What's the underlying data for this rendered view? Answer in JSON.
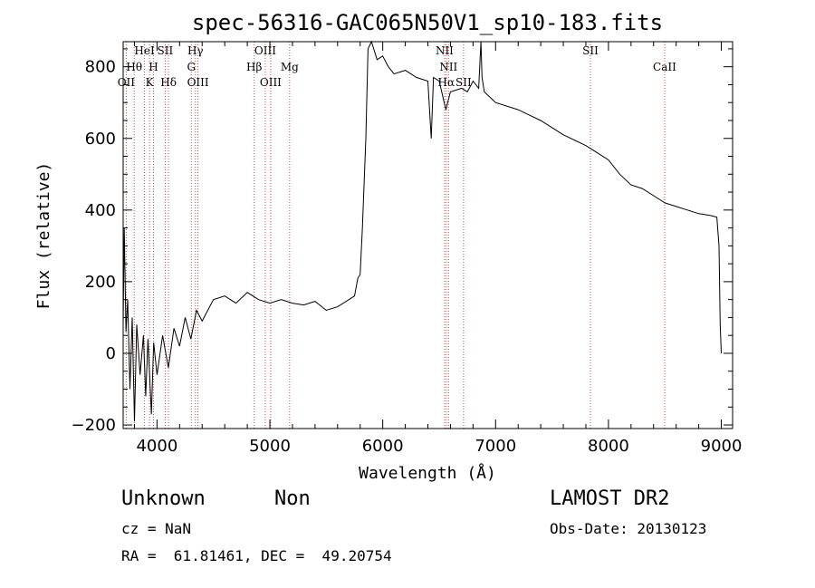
{
  "chart_data": {
    "type": "line",
    "title": "spec-56316-GAC065N50V1_sp10-183.fits",
    "xlabel": "Wavelength (Å)",
    "ylabel": "Flux (relative)",
    "xlim": [
      3700,
      9100
    ],
    "ylim": [
      -210,
      870
    ],
    "x_ticks": [
      4000,
      5000,
      6000,
      7000,
      8000,
      9000
    ],
    "x_tick_labels": [
      "4000",
      "5000",
      "6000",
      "7000",
      "8000",
      "9000"
    ],
    "y_ticks": [
      -200,
      0,
      200,
      400,
      600,
      800
    ],
    "y_tick_labels": [
      "−200",
      "0",
      "200",
      "400",
      "600",
      "800"
    ],
    "grid": false,
    "series": [
      {
        "color": "#000000",
        "points": [
          [
            3700,
            80
          ],
          [
            3710,
            350
          ],
          [
            3725,
            60
          ],
          [
            3740,
            150
          ],
          [
            3760,
            -100
          ],
          [
            3780,
            100
          ],
          [
            3800,
            -190
          ],
          [
            3820,
            80
          ],
          [
            3850,
            -60
          ],
          [
            3880,
            50
          ],
          [
            3900,
            -120
          ],
          [
            3920,
            40
          ],
          [
            3950,
            -170
          ],
          [
            3970,
            30
          ],
          [
            4000,
            -60
          ],
          [
            4050,
            50
          ],
          [
            4100,
            -40
          ],
          [
            4150,
            70
          ],
          [
            4200,
            20
          ],
          [
            4250,
            100
          ],
          [
            4300,
            40
          ],
          [
            4350,
            120
          ],
          [
            4400,
            90
          ],
          [
            4500,
            150
          ],
          [
            4600,
            160
          ],
          [
            4700,
            140
          ],
          [
            4800,
            170
          ],
          [
            4900,
            150
          ],
          [
            5000,
            140
          ],
          [
            5100,
            150
          ],
          [
            5200,
            140
          ],
          [
            5300,
            135
          ],
          [
            5400,
            145
          ],
          [
            5500,
            120
          ],
          [
            5600,
            130
          ],
          [
            5700,
            150
          ],
          [
            5750,
            160
          ],
          [
            5780,
            210
          ],
          [
            5800,
            220
          ],
          [
            5820,
            350
          ],
          [
            5850,
            600
          ],
          [
            5870,
            850
          ],
          [
            5900,
            870
          ],
          [
            5950,
            820
          ],
          [
            6000,
            830
          ],
          [
            6050,
            800
          ],
          [
            6100,
            780
          ],
          [
            6200,
            790
          ],
          [
            6300,
            770
          ],
          [
            6400,
            760
          ],
          [
            6430,
            600
          ],
          [
            6450,
            770
          ],
          [
            6500,
            760
          ],
          [
            6560,
            680
          ],
          [
            6600,
            730
          ],
          [
            6700,
            740
          ],
          [
            6750,
            730
          ],
          [
            6800,
            760
          ],
          [
            6850,
            740
          ],
          [
            6870,
            900
          ],
          [
            6880,
            770
          ],
          [
            6900,
            730
          ],
          [
            7000,
            700
          ],
          [
            7200,
            680
          ],
          [
            7400,
            650
          ],
          [
            7600,
            610
          ],
          [
            7800,
            580
          ],
          [
            7900,
            560
          ],
          [
            8000,
            540
          ],
          [
            8100,
            500
          ],
          [
            8200,
            470
          ],
          [
            8300,
            460
          ],
          [
            8400,
            440
          ],
          [
            8500,
            420
          ],
          [
            8600,
            410
          ],
          [
            8700,
            400
          ],
          [
            8800,
            390
          ],
          [
            8900,
            385
          ],
          [
            8960,
            380
          ],
          [
            8980,
            300
          ],
          [
            8990,
            80
          ],
          [
            9000,
            0
          ]
        ]
      }
    ],
    "lines": [
      {
        "wl": 3727,
        "name": "OII",
        "row": 3
      },
      {
        "wl": 3798,
        "name": "Hθ",
        "row": 2
      },
      {
        "wl": 3889,
        "name": "HeI",
        "row": 1
      },
      {
        "wl": 3934,
        "name": "K",
        "row": 3
      },
      {
        "wl": 3969,
        "name": "H",
        "row": 2
      },
      {
        "wl": 4072,
        "name": "SII",
        "row": 1
      },
      {
        "wl": 4102,
        "name": "Hδ",
        "row": 3
      },
      {
        "wl": 4304,
        "name": "G",
        "row": 2
      },
      {
        "wl": 4340,
        "name": "Hγ",
        "row": 1
      },
      {
        "wl": 4363,
        "name": "OIII",
        "row": 3
      },
      {
        "wl": 4861,
        "name": "Hβ",
        "row": 2
      },
      {
        "wl": 4959,
        "name": "OIII",
        "row": 1
      },
      {
        "wl": 5007,
        "name": "OIII",
        "row": 3
      },
      {
        "wl": 5175,
        "name": "Mg",
        "row": 2
      },
      {
        "wl": 6548,
        "name": "NII",
        "row": 1
      },
      {
        "wl": 6563,
        "name": "Hα",
        "row": 3
      },
      {
        "wl": 6583,
        "name": "NII",
        "row": 2
      },
      {
        "wl": 6716,
        "name": "SII",
        "row": 3
      },
      {
        "wl": 7840,
        "name": "SII",
        "row": 1
      },
      {
        "wl": 8498,
        "name": "CaII",
        "row": 2
      }
    ]
  },
  "info": {
    "class": "Unknown",
    "subclass": "Non",
    "survey": "LAMOST DR2",
    "cz": "cz = NaN",
    "obs_date": "Obs-Date: 20130123",
    "coords": "RA =  61.81461, DEC =  49.20754"
  },
  "colors": {
    "line_marker": "#c0504d",
    "spectrum": "#000000",
    "axes": "#000000",
    "background": "#ffffff"
  }
}
